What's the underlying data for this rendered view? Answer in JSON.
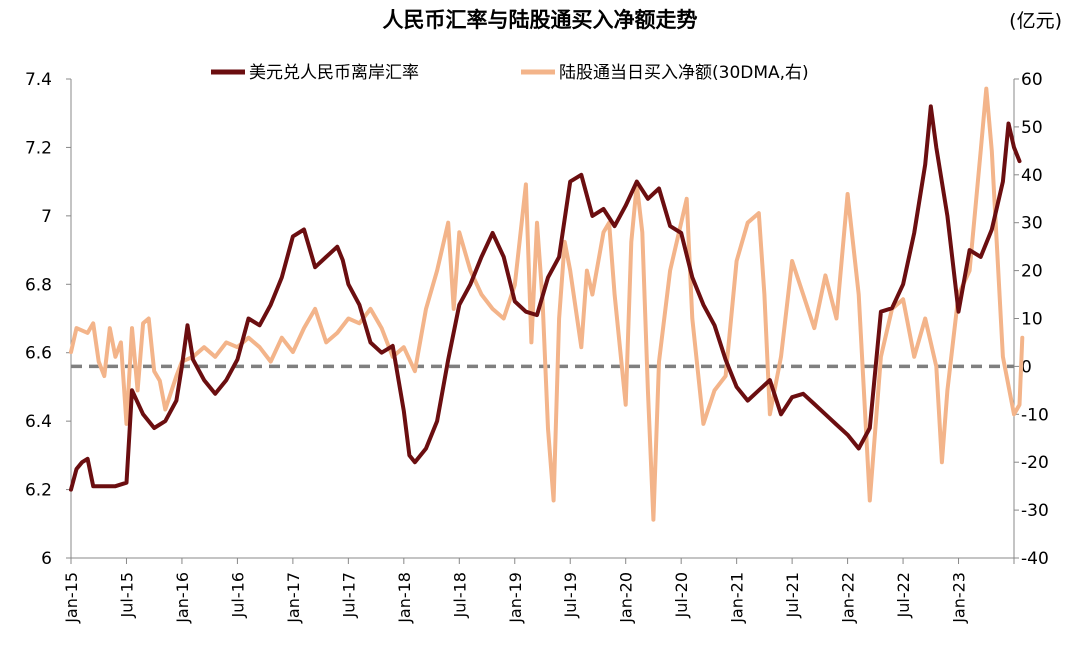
{
  "chart_data": {
    "type": "line",
    "title": "人民币汇率与陆股通买入净额走势",
    "unit_right": "(亿元)",
    "x_categories": [
      "Jan-15",
      "Jul-15",
      "Jan-16",
      "Jul-16",
      "Jan-17",
      "Jul-17",
      "Jan-18",
      "Jul-18",
      "Jan-19",
      "Jul-19",
      "Jan-20",
      "Jul-20",
      "Jan-21",
      "Jul-21",
      "Jan-22",
      "Jul-22",
      "Jan-23"
    ],
    "y_left": {
      "min": 6,
      "max": 7.4,
      "ticks": [
        6,
        6.2,
        6.4,
        6.6,
        6.8,
        7,
        7.2,
        7.4
      ],
      "tick_labels": [
        "6",
        "6.2",
        "6.4",
        "6.6",
        "6.8",
        "7",
        "7.2",
        "7.4"
      ]
    },
    "y_right": {
      "min": -40,
      "max": 60,
      "ticks": [
        -40,
        -30,
        -20,
        -10,
        0,
        10,
        20,
        30,
        40,
        50,
        60
      ],
      "tick_labels": [
        "-40",
        "-30",
        "-20",
        "-10",
        "0",
        "10",
        "20",
        "30",
        "40",
        "50",
        "60"
      ]
    },
    "reference_line_right": 0,
    "series": [
      {
        "name": "美元兑人民币离岸汇率",
        "axis": "left",
        "color": "#6b0e10",
        "points": [
          [
            0.0,
            6.2
          ],
          [
            0.1,
            6.26
          ],
          [
            0.2,
            6.28
          ],
          [
            0.3,
            6.29
          ],
          [
            0.4,
            6.21
          ],
          [
            0.6,
            6.21
          ],
          [
            0.8,
            6.21
          ],
          [
            1.0,
            6.22
          ],
          [
            1.1,
            6.49
          ],
          [
            1.3,
            6.42
          ],
          [
            1.5,
            6.38
          ],
          [
            1.7,
            6.4
          ],
          [
            1.9,
            6.46
          ],
          [
            2.0,
            6.56
          ],
          [
            2.1,
            6.68
          ],
          [
            2.2,
            6.58
          ],
          [
            2.4,
            6.52
          ],
          [
            2.6,
            6.48
          ],
          [
            2.8,
            6.52
          ],
          [
            3.0,
            6.58
          ],
          [
            3.2,
            6.7
          ],
          [
            3.4,
            6.68
          ],
          [
            3.6,
            6.74
          ],
          [
            3.8,
            6.82
          ],
          [
            4.0,
            6.94
          ],
          [
            4.2,
            6.96
          ],
          [
            4.4,
            6.85
          ],
          [
            4.6,
            6.88
          ],
          [
            4.8,
            6.91
          ],
          [
            4.9,
            6.87
          ],
          [
            5.0,
            6.8
          ],
          [
            5.2,
            6.74
          ],
          [
            5.4,
            6.63
          ],
          [
            5.6,
            6.6
          ],
          [
            5.8,
            6.62
          ],
          [
            6.0,
            6.43
          ],
          [
            6.1,
            6.3
          ],
          [
            6.2,
            6.28
          ],
          [
            6.4,
            6.32
          ],
          [
            6.6,
            6.4
          ],
          [
            6.8,
            6.58
          ],
          [
            7.0,
            6.74
          ],
          [
            7.2,
            6.8
          ],
          [
            7.4,
            6.88
          ],
          [
            7.6,
            6.95
          ],
          [
            7.8,
            6.88
          ],
          [
            8.0,
            6.75
          ],
          [
            8.2,
            6.72
          ],
          [
            8.4,
            6.71
          ],
          [
            8.6,
            6.82
          ],
          [
            8.8,
            6.88
          ],
          [
            9.0,
            7.1
          ],
          [
            9.2,
            7.12
          ],
          [
            9.4,
            7.0
          ],
          [
            9.6,
            7.02
          ],
          [
            9.8,
            6.97
          ],
          [
            10.0,
            7.03
          ],
          [
            10.2,
            7.1
          ],
          [
            10.4,
            7.05
          ],
          [
            10.6,
            7.08
          ],
          [
            10.8,
            6.97
          ],
          [
            11.0,
            6.95
          ],
          [
            11.2,
            6.82
          ],
          [
            11.4,
            6.74
          ],
          [
            11.6,
            6.68
          ],
          [
            11.8,
            6.58
          ],
          [
            12.0,
            6.5
          ],
          [
            12.2,
            6.46
          ],
          [
            12.4,
            6.49
          ],
          [
            12.6,
            6.52
          ],
          [
            12.8,
            6.42
          ],
          [
            13.0,
            6.47
          ],
          [
            13.2,
            6.48
          ],
          [
            13.4,
            6.45
          ],
          [
            13.6,
            6.42
          ],
          [
            13.8,
            6.39
          ],
          [
            14.0,
            6.36
          ],
          [
            14.2,
            6.32
          ],
          [
            14.4,
            6.38
          ],
          [
            14.6,
            6.72
          ],
          [
            14.8,
            6.73
          ],
          [
            15.0,
            6.8
          ],
          [
            15.2,
            6.95
          ],
          [
            15.4,
            7.15
          ],
          [
            15.5,
            7.32
          ],
          [
            15.6,
            7.2
          ],
          [
            15.8,
            7.0
          ],
          [
            16.0,
            6.72
          ],
          [
            16.2,
            6.9
          ],
          [
            16.4,
            6.88
          ],
          [
            16.6,
            6.96
          ],
          [
            16.8,
            7.1
          ],
          [
            16.9,
            7.27
          ],
          [
            17.0,
            7.2
          ],
          [
            17.1,
            7.16
          ]
        ]
      },
      {
        "name": "陆股通当日买入净额(30DMA,右)",
        "axis": "right",
        "color": "#f3b48a",
        "points": [
          [
            0.0,
            3
          ],
          [
            0.1,
            8
          ],
          [
            0.3,
            7
          ],
          [
            0.4,
            9
          ],
          [
            0.5,
            1
          ],
          [
            0.6,
            -2
          ],
          [
            0.7,
            8
          ],
          [
            0.8,
            2
          ],
          [
            0.9,
            5
          ],
          [
            1.0,
            -12
          ],
          [
            1.1,
            8
          ],
          [
            1.2,
            -5
          ],
          [
            1.3,
            9
          ],
          [
            1.4,
            10
          ],
          [
            1.5,
            -1
          ],
          [
            1.6,
            -3
          ],
          [
            1.7,
            -9
          ],
          [
            1.9,
            -2
          ],
          [
            2.0,
            1
          ],
          [
            2.2,
            2
          ],
          [
            2.4,
            4
          ],
          [
            2.6,
            2
          ],
          [
            2.8,
            5
          ],
          [
            3.0,
            4
          ],
          [
            3.2,
            6
          ],
          [
            3.4,
            4
          ],
          [
            3.6,
            1
          ],
          [
            3.8,
            6
          ],
          [
            4.0,
            3
          ],
          [
            4.2,
            8
          ],
          [
            4.4,
            12
          ],
          [
            4.6,
            5
          ],
          [
            4.8,
            7
          ],
          [
            5.0,
            10
          ],
          [
            5.2,
            9
          ],
          [
            5.4,
            12
          ],
          [
            5.6,
            8
          ],
          [
            5.8,
            2
          ],
          [
            6.0,
            4
          ],
          [
            6.2,
            -1
          ],
          [
            6.4,
            12
          ],
          [
            6.6,
            20
          ],
          [
            6.8,
            30
          ],
          [
            6.9,
            12
          ],
          [
            7.0,
            28
          ],
          [
            7.2,
            20
          ],
          [
            7.4,
            15
          ],
          [
            7.6,
            12
          ],
          [
            7.8,
            10
          ],
          [
            8.0,
            17
          ],
          [
            8.2,
            38
          ],
          [
            8.3,
            5
          ],
          [
            8.4,
            30
          ],
          [
            8.5,
            14
          ],
          [
            8.6,
            -13
          ],
          [
            8.7,
            -28
          ],
          [
            8.8,
            10
          ],
          [
            8.9,
            26
          ],
          [
            9.0,
            20
          ],
          [
            9.2,
            4
          ],
          [
            9.3,
            20
          ],
          [
            9.4,
            15
          ],
          [
            9.6,
            28
          ],
          [
            9.7,
            30
          ],
          [
            9.8,
            15
          ],
          [
            10.0,
            -8
          ],
          [
            10.1,
            26
          ],
          [
            10.2,
            38
          ],
          [
            10.3,
            28
          ],
          [
            10.4,
            -5
          ],
          [
            10.5,
            -32
          ],
          [
            10.6,
            1
          ],
          [
            10.8,
            20
          ],
          [
            11.0,
            30
          ],
          [
            11.1,
            35
          ],
          [
            11.2,
            10
          ],
          [
            11.4,
            -12
          ],
          [
            11.6,
            -5
          ],
          [
            11.8,
            -2
          ],
          [
            12.0,
            22
          ],
          [
            12.2,
            30
          ],
          [
            12.4,
            32
          ],
          [
            12.5,
            15
          ],
          [
            12.6,
            -10
          ],
          [
            12.8,
            2
          ],
          [
            13.0,
            22
          ],
          [
            13.2,
            15
          ],
          [
            13.4,
            8
          ],
          [
            13.6,
            19
          ],
          [
            13.8,
            10
          ],
          [
            14.0,
            36
          ],
          [
            14.2,
            15
          ],
          [
            14.4,
            -28
          ],
          [
            14.6,
            2
          ],
          [
            14.8,
            12
          ],
          [
            15.0,
            14
          ],
          [
            15.2,
            2
          ],
          [
            15.4,
            10
          ],
          [
            15.6,
            0
          ],
          [
            15.7,
            -20
          ],
          [
            15.8,
            -5
          ],
          [
            16.0,
            15
          ],
          [
            16.2,
            20
          ],
          [
            16.4,
            45
          ],
          [
            16.5,
            58
          ],
          [
            16.6,
            45
          ],
          [
            16.8,
            2
          ],
          [
            17.0,
            -10
          ],
          [
            17.1,
            -8
          ],
          [
            17.15,
            6
          ]
        ]
      }
    ]
  }
}
